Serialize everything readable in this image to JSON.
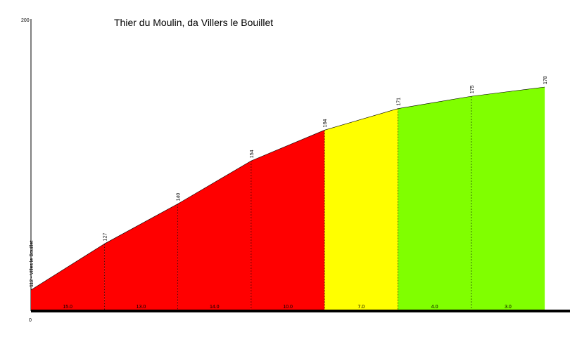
{
  "chart_data": {
    "type": "area",
    "title": "Thier du Moulin, da Villers le Bouillet",
    "ylim": [
      0,
      200
    ],
    "y_ticks": [
      "200",
      "0"
    ],
    "start_label": "112 - Villes le Bouillet",
    "points": [
      {
        "km": 0,
        "elevation": 112,
        "label": "112 - Villes le Bouillet"
      },
      {
        "km": 1,
        "elevation": 127,
        "label": "127"
      },
      {
        "km": 2,
        "elevation": 140,
        "label": "140"
      },
      {
        "km": 3,
        "elevation": 154,
        "label": "154"
      },
      {
        "km": 4,
        "elevation": 164,
        "label": "164"
      },
      {
        "km": 5,
        "elevation": 171,
        "label": "171"
      },
      {
        "km": 6,
        "elevation": 175,
        "label": "175"
      },
      {
        "km": 7,
        "elevation": 178,
        "label": "178"
      }
    ],
    "segments": [
      {
        "grade": "15.0",
        "color": "#ff0000"
      },
      {
        "grade": "13.0",
        "color": "#ff0000"
      },
      {
        "grade": "14.0",
        "color": "#ff0000"
      },
      {
        "grade": "10.0",
        "color": "#ff0000"
      },
      {
        "grade": "7.0",
        "color": "#ffff00"
      },
      {
        "grade": "4.0",
        "color": "#80ff00"
      },
      {
        "grade": "3.0",
        "color": "#80ff00"
      }
    ]
  }
}
